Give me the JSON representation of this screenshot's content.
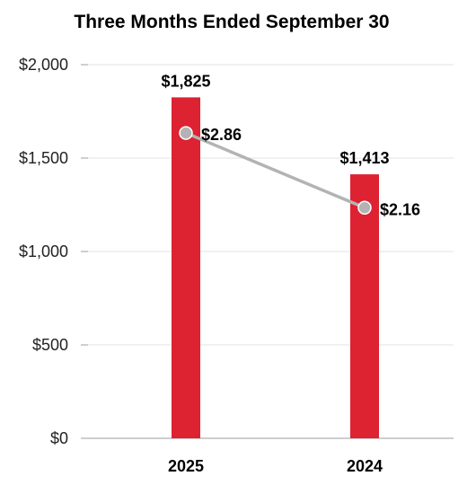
{
  "chart_data": {
    "type": "bar",
    "title": "Three Months Ended September 30",
    "categories": [
      "2025",
      "2024"
    ],
    "values": [
      1825,
      1413
    ],
    "bar_labels": [
      "$1,825",
      "$1,413"
    ],
    "ylim": [
      0,
      2000
    ],
    "yticks": [
      0,
      500,
      1000,
      1500,
      2000
    ],
    "ytick_labels": [
      "$0",
      "$500",
      "$1,000",
      "$1,500",
      "$2,000"
    ],
    "grid": true,
    "xlabel": "",
    "ylabel": "",
    "overlay_line": {
      "type": "line",
      "values": [
        2.86,
        2.16
      ],
      "labels": [
        "$2.86",
        "$2.16"
      ],
      "ylim": [
        0,
        3.5
      ]
    },
    "colors": {
      "bar": "#dd2231",
      "line": "#b3b3b3",
      "marker": "#b3b3b3"
    }
  }
}
